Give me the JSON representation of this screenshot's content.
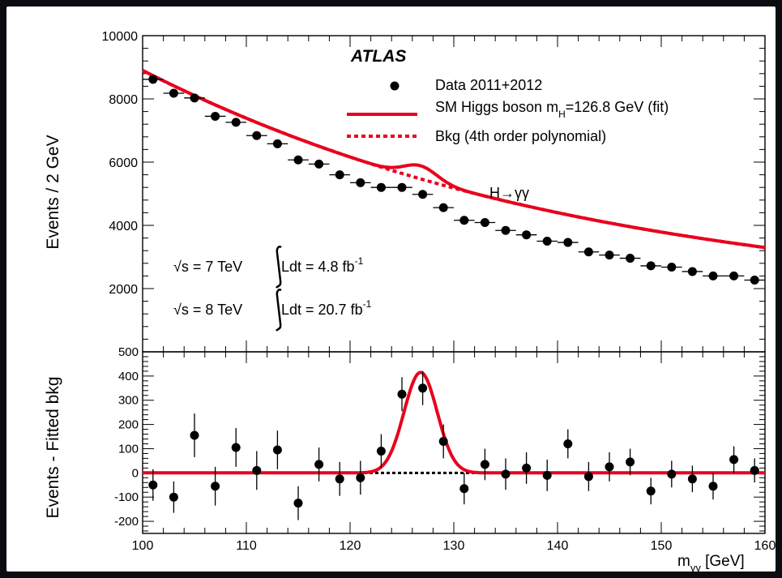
{
  "page": {
    "background": "#0b0c10",
    "figure_bg": "#ffffff"
  },
  "chart_data": [
    {
      "type": "scatter",
      "panel": "top",
      "experiment_label": "ATLAS",
      "channel_label": "H→γγ",
      "ylabel": "Events / 2 GeV",
      "xlim": [
        100,
        160
      ],
      "ylim": [
        0,
        10000
      ],
      "y_ticks": [
        2000,
        4000,
        6000,
        8000,
        10000
      ],
      "lumi": [
        {
          "sqrt_s": "√s = 7 TeV",
          "ldt": "Ldt = 4.8 fb",
          "exp": "-1"
        },
        {
          "sqrt_s": "√s = 8 TeV",
          "ldt": "Ldt = 20.7 fb",
          "exp": "-1"
        }
      ],
      "legend": {
        "placement": "top-right",
        "entries": [
          {
            "style": "marker",
            "text": "Data 2011+2012"
          },
          {
            "style": "solid",
            "text": "SM Higgs boson m",
            "sub": "H",
            "suffix": "=126.8 GeV (fit)"
          },
          {
            "style": "dashed",
            "text": "Bkg (4th order polynomial)"
          }
        ]
      },
      "series": [
        {
          "name": "Data 2011+2012",
          "kind": "points",
          "color": "#000000",
          "x": [
            101,
            103,
            105,
            107,
            109,
            111,
            113,
            115,
            117,
            119,
            121,
            123,
            125,
            127,
            129,
            131,
            133,
            135,
            137,
            139,
            141,
            143,
            145,
            147,
            149,
            151,
            153,
            155,
            157,
            159
          ],
          "y": [
            8620,
            8180,
            8030,
            7450,
            7260,
            6840,
            6580,
            6070,
            5940,
            5600,
            5350,
            5200,
            5200,
            4980,
            4560,
            4160,
            4090,
            3840,
            3700,
            3500,
            3460,
            3160,
            3060,
            2960,
            2720,
            2680,
            2540,
            2400,
            2400,
            2270
          ],
          "xerr": 1
        },
        {
          "name": "SM Higgs boson m_H=126.8 GeV (fit)",
          "kind": "solid",
          "color": "#e8001e"
        },
        {
          "name": "Bkg (4th order polynomial)",
          "kind": "dashed",
          "color": "#e8001e"
        }
      ],
      "background_fit": {
        "x0": 100,
        "coeffs": [
          8900,
          -166.7,
          1.6227,
          -0.00667
        ]
      },
      "signal": {
        "mass": 126.8,
        "amplitude": 415,
        "sigma": 1.6
      }
    },
    {
      "type": "scatter",
      "panel": "bottom",
      "ylabel": "Events - Fitted bkg",
      "xlabel": "m",
      "xlabel_sub": "γγ",
      "xlabel_unit": " [GeV]",
      "xlim": [
        100,
        160
      ],
      "ylim": [
        -250,
        500
      ],
      "x_ticks": [
        100,
        110,
        120,
        130,
        140,
        150,
        160
      ],
      "y_ticks": [
        -200,
        -100,
        0,
        100,
        200,
        300,
        400,
        500
      ],
      "series": [
        {
          "name": "Data - fitted bkg",
          "kind": "points",
          "color": "#000000",
          "x": [
            101,
            103,
            105,
            107,
            109,
            111,
            113,
            115,
            117,
            119,
            121,
            123,
            125,
            127,
            129,
            131,
            133,
            135,
            137,
            139,
            141,
            143,
            145,
            147,
            149,
            151,
            153,
            155,
            157,
            159
          ],
          "y": [
            -50,
            -100,
            155,
            -55,
            105,
            10,
            95,
            -125,
            35,
            -25,
            -20,
            90,
            325,
            350,
            130,
            -65,
            35,
            -5,
            20,
            -10,
            120,
            -15,
            25,
            45,
            -75,
            -5,
            -25,
            -55,
            55,
            10
          ],
          "yerr": [
            65,
            65,
            90,
            80,
            80,
            80,
            80,
            70,
            70,
            70,
            70,
            70,
            70,
            70,
            70,
            65,
            65,
            65,
            65,
            65,
            60,
            60,
            60,
            55,
            55,
            55,
            55,
            55,
            55,
            50
          ]
        },
        {
          "name": "Signal fit",
          "kind": "solid",
          "color": "#e8001e"
        },
        {
          "name": "Background",
          "kind": "dashed",
          "color": "#000000"
        }
      ]
    }
  ]
}
